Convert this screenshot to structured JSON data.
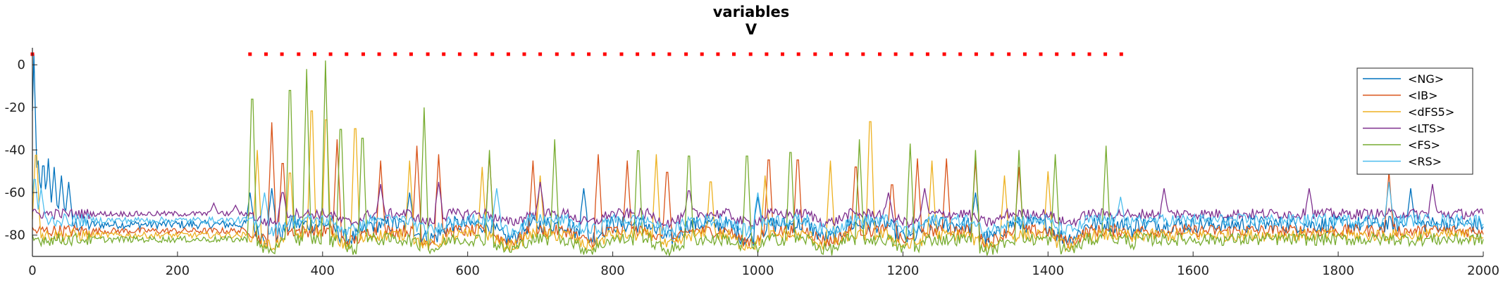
{
  "chart_data": {
    "type": "line",
    "title": "variables",
    "subtitle": "V",
    "xlabel": "",
    "ylabel": "",
    "xlim": [
      0,
      2000
    ],
    "ylim": [
      -90,
      8
    ],
    "x_ticks": [
      0,
      200,
      400,
      600,
      800,
      1000,
      1200,
      1400,
      1600,
      1800,
      2000
    ],
    "y_ticks": [
      0,
      -20,
      -40,
      -60,
      -80
    ],
    "grid": false,
    "legend_position": "top-right",
    "series": [
      {
        "name": "<NG>",
        "color": "#0072bd",
        "baseline": -75,
        "noise": 4,
        "spikes": [
          [
            2,
            5
          ],
          [
            8,
            -45
          ],
          [
            15,
            -42
          ],
          [
            22,
            -44
          ],
          [
            30,
            -48
          ],
          [
            40,
            -52
          ],
          [
            50,
            -55
          ],
          [
            300,
            -60
          ],
          [
            330,
            -58
          ],
          [
            520,
            -60
          ],
          [
            760,
            -58
          ],
          [
            1000,
            -62
          ],
          [
            1300,
            -60
          ],
          [
            1900,
            -58
          ]
        ]
      },
      {
        "name": "<IB>",
        "color": "#d95319",
        "baseline": -78,
        "noise": 3,
        "spikes": [
          [
            330,
            -27
          ],
          [
            345,
            -40
          ],
          [
            420,
            -35
          ],
          [
            480,
            -45
          ],
          [
            530,
            -38
          ],
          [
            560,
            -42
          ],
          [
            630,
            -42
          ],
          [
            690,
            -45
          ],
          [
            780,
            -42
          ],
          [
            820,
            -45
          ],
          [
            875,
            -45
          ],
          [
            1015,
            -38
          ],
          [
            1055,
            -38
          ],
          [
            1135,
            -42
          ],
          [
            1185,
            -52
          ],
          [
            1220,
            -44
          ],
          [
            1260,
            -44
          ],
          [
            1300,
            -45
          ],
          [
            1360,
            -48
          ],
          [
            1870,
            -50
          ]
        ]
      },
      {
        "name": "<dFS5>",
        "color": "#edb120",
        "baseline": -80,
        "noise": 3,
        "spikes": [
          [
            5,
            -35
          ],
          [
            310,
            -40
          ],
          [
            355,
            -45
          ],
          [
            385,
            -10
          ],
          [
            405,
            -15
          ],
          [
            445,
            -20
          ],
          [
            520,
            -45
          ],
          [
            620,
            -48
          ],
          [
            700,
            -52
          ],
          [
            860,
            -42
          ],
          [
            935,
            -50
          ],
          [
            1010,
            -52
          ],
          [
            1100,
            -45
          ],
          [
            1155,
            -16
          ],
          [
            1240,
            -45
          ],
          [
            1340,
            -52
          ],
          [
            1400,
            -50
          ]
        ]
      },
      {
        "name": "<LTS>",
        "color": "#7e2f8e",
        "baseline": -70,
        "noise": 2.5,
        "spikes": [
          [
            250,
            -65
          ],
          [
            280,
            -66
          ],
          [
            345,
            -58
          ],
          [
            480,
            -56
          ],
          [
            560,
            -55
          ],
          [
            700,
            -55
          ],
          [
            905,
            -57
          ],
          [
            1180,
            -60
          ],
          [
            1230,
            -58
          ],
          [
            1560,
            -58
          ],
          [
            1760,
            -58
          ],
          [
            1930,
            -56
          ]
        ]
      },
      {
        "name": "<FS>",
        "color": "#77ac30",
        "baseline": -82,
        "noise": 3,
        "spikes": [
          [
            303,
            -3
          ],
          [
            355,
            2
          ],
          [
            378,
            -2
          ],
          [
            404,
            2
          ],
          [
            425,
            -20
          ],
          [
            455,
            -25
          ],
          [
            540,
            -20
          ],
          [
            630,
            -40
          ],
          [
            720,
            -35
          ],
          [
            835,
            -32
          ],
          [
            905,
            -35
          ],
          [
            985,
            -35
          ],
          [
            1045,
            -33
          ],
          [
            1140,
            -35
          ],
          [
            1210,
            -37
          ],
          [
            1300,
            -40
          ],
          [
            1360,
            -40
          ],
          [
            1410,
            -42
          ],
          [
            1480,
            -38
          ]
        ]
      },
      {
        "name": "<RS>",
        "color": "#4dbeee",
        "baseline": -73,
        "noise": 3,
        "spikes": [
          [
            3,
            -50
          ],
          [
            12,
            -58
          ],
          [
            320,
            -60
          ],
          [
            640,
            -58
          ],
          [
            1000,
            -60
          ],
          [
            1500,
            -62
          ],
          [
            1870,
            -55
          ]
        ]
      }
    ],
    "markers": {
      "color": "#ff0000",
      "y": 5,
      "x": [
        0,
        300,
        322,
        344,
        367,
        389,
        411,
        433,
        456,
        478,
        500,
        522,
        545,
        567,
        589,
        611,
        634,
        656,
        678,
        700,
        723,
        745,
        767,
        789,
        812,
        834,
        856,
        878,
        901,
        923,
        945,
        967,
        990,
        1012,
        1034,
        1056,
        1079,
        1101,
        1123,
        1145,
        1168,
        1190,
        1212,
        1234,
        1257,
        1279,
        1301,
        1323,
        1346,
        1368,
        1390,
        1412,
        1435,
        1457,
        1479,
        1501
      ]
    }
  }
}
